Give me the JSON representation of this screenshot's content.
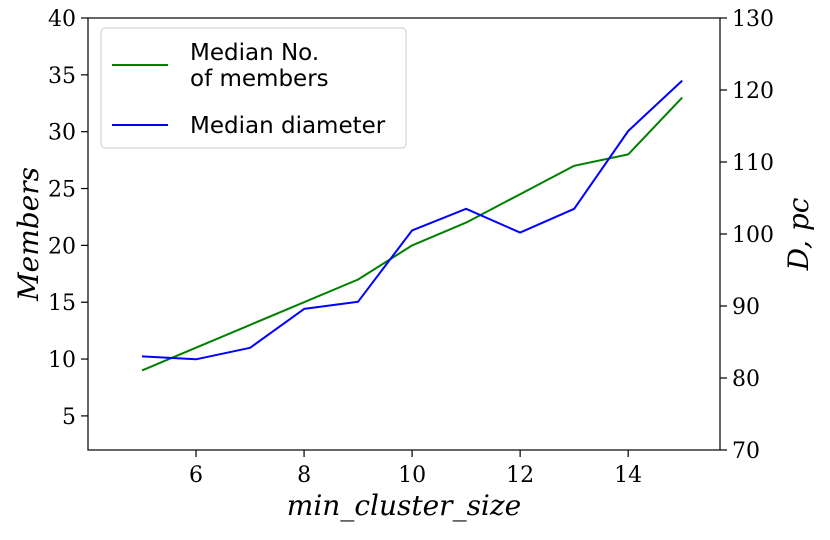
{
  "chart_data": {
    "type": "line",
    "xlabel": "min_cluster_size",
    "ylabel_left": "Members",
    "ylabel_right": "D, pc",
    "x": [
      5,
      6,
      7,
      8,
      9,
      10,
      11,
      12,
      13,
      14,
      15
    ],
    "xlim": [
      4.0,
      15.7
    ],
    "xticks": [
      6,
      8,
      10,
      12,
      14
    ],
    "ylim_left": [
      2.0,
      40.0
    ],
    "yticks_left": [
      5,
      10,
      15,
      20,
      25,
      30,
      35,
      40
    ],
    "ylim_right": [
      70.0,
      130.0
    ],
    "yticks_right": [
      70,
      80,
      90,
      100,
      110,
      120,
      130
    ],
    "grid": false,
    "legend_position": "upper left",
    "series": [
      {
        "name": "Median No. of members",
        "legend_lines": [
          "Median No.",
          "of members"
        ],
        "axis": "left",
        "color": "#008000",
        "values": [
          9,
          11,
          13,
          15,
          17,
          20,
          22,
          24.5,
          27,
          28,
          33
        ]
      },
      {
        "name": "Median diameter",
        "legend_lines": [
          "Median diameter"
        ],
        "axis": "right",
        "color": "#0000ff",
        "values": [
          83,
          82.6,
          84.2,
          89.6,
          90.6,
          100.5,
          103.5,
          100.2,
          103.5,
          114.3,
          121.3
        ]
      }
    ]
  }
}
